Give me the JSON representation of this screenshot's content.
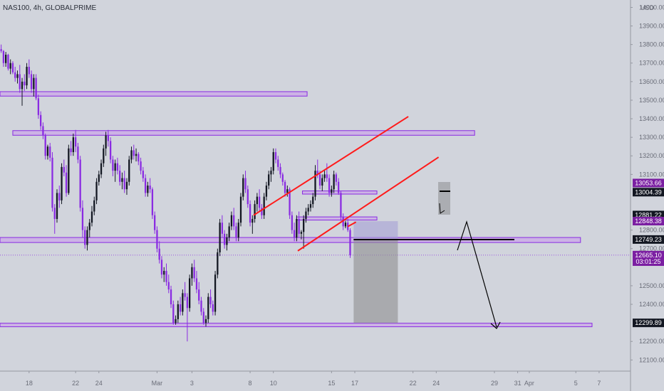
{
  "header": {
    "title": "NAS100, 4h, GLOBALPRIME"
  },
  "colors": {
    "bg": "#d1d4dc",
    "up": "#131722",
    "down": "#8a2be2",
    "zone_fill": "#c9a8e8",
    "zone_stroke": "#8a2be2",
    "channel": "#ff1a1a",
    "purple_tag": "#7b1fa2",
    "black_tag": "#131722"
  },
  "chart_data": {
    "type": "candlestick",
    "title": "NAS100, 4h, GLOBALPRIME",
    "currency": "USD",
    "y_ticks": [
      "14000.00",
      "13900.00",
      "13800.00",
      "13700.00",
      "13600.00",
      "13500.00",
      "13400.00",
      "13300.00",
      "13200.00",
      "13100.00",
      "12800.00",
      "12700.00",
      "12500.00",
      "12400.00",
      "12200.00",
      "12100.00"
    ],
    "x_ticks": [
      {
        "label": "18",
        "day": 18
      },
      {
        "label": "22",
        "day": 22
      },
      {
        "label": "24",
        "day": 24
      },
      {
        "label": "Mar",
        "day": 29
      },
      {
        "label": "3",
        "day": 32
      },
      {
        "label": "8",
        "day": 37
      },
      {
        "label": "10",
        "day": 39
      },
      {
        "label": "15",
        "day": 44
      },
      {
        "label": "17",
        "day": 46
      },
      {
        "label": "22",
        "day": 51
      },
      {
        "label": "24",
        "day": 53
      },
      {
        "label": "29",
        "day": 58
      },
      {
        "label": "31",
        "day": 60
      },
      {
        "label": "Apr",
        "day": 61
      },
      {
        "label": "5",
        "day": 65
      },
      {
        "label": "7",
        "day": 67
      }
    ],
    "y_range": [
      12040,
      14040
    ],
    "x_range": [
      15.5,
      69.7
    ],
    "price_tags": [
      {
        "label": "13053.66",
        "price": 13053.66,
        "style": "purple"
      },
      {
        "label": "13004.39",
        "price": 13004.39,
        "style": "black"
      },
      {
        "label": "12881.22",
        "price": 12881.22,
        "style": "black"
      },
      {
        "label": "12848.38",
        "price": 12848.38,
        "style": "purple"
      },
      {
        "label": "12749.23",
        "price": 12749.23,
        "style": "black"
      },
      {
        "label": "12665.10",
        "price": 12665.1,
        "style": "purple"
      },
      {
        "label": "03:01:25",
        "price": 12630,
        "style": "purple"
      },
      {
        "label": "12299.89",
        "price": 12299.89,
        "style": "black"
      }
    ],
    "zones": [
      {
        "x0": 15.5,
        "x1": 41.9,
        "y0": 13546,
        "y1": 13522
      },
      {
        "x0": 16.6,
        "x1": 56.3,
        "y0": 13336,
        "y1": 13311
      },
      {
        "x0": 41.5,
        "x1": 47.9,
        "y0": 13011,
        "y1": 12994
      },
      {
        "x0": 41.0,
        "x1": 47.9,
        "y0": 12871,
        "y1": 12854
      },
      {
        "x0": 15.5,
        "x1": 65.4,
        "y0": 12760,
        "y1": 12733
      },
      {
        "x0": 15.5,
        "x1": 72.0,
        "y0": 12298,
        "y1": 12279
      }
    ],
    "channel_lines": [
      {
        "x0": 37.3,
        "y0": 12880,
        "x1": 50.6,
        "y1": 13412
      },
      {
        "x0": 41.1,
        "y0": 12688,
        "x1": 53.2,
        "y1": 13193
      },
      {
        "x0": 45.4,
        "y0": 12819,
        "x1": 46.1,
        "y1": 12843
      }
    ],
    "position": {
      "x0": 45.9,
      "x1": 49.7,
      "entry": 12749,
      "profit_top": 12749,
      "profit_bottom": 12299,
      "risk_top": 12848,
      "risk_bottom": 12749
    },
    "candles": [
      [
        15.4,
        13760,
        13785,
        13740,
        13775
      ],
      [
        15.6,
        13775,
        13800,
        13755,
        13765
      ],
      [
        15.8,
        13765,
        13770,
        13680,
        13700
      ],
      [
        16.0,
        13700,
        13760,
        13680,
        13745
      ],
      [
        16.2,
        13745,
        13750,
        13660,
        13670
      ],
      [
        16.4,
        13670,
        13720,
        13640,
        13700
      ],
      [
        16.6,
        13700,
        13710,
        13640,
        13650
      ],
      [
        16.8,
        13650,
        13680,
        13600,
        13620
      ],
      [
        17.0,
        13620,
        13660,
        13590,
        13640
      ],
      [
        17.2,
        13640,
        13690,
        13540,
        13560
      ],
      [
        17.4,
        13560,
        13620,
        13470,
        13600
      ],
      [
        17.6,
        13600,
        13640,
        13550,
        13580
      ],
      [
        17.8,
        13580,
        13700,
        13560,
        13680
      ],
      [
        18.0,
        13680,
        13720,
        13620,
        13640
      ],
      [
        18.2,
        13640,
        13660,
        13540,
        13560
      ],
      [
        18.4,
        13560,
        13640,
        13520,
        13620
      ],
      [
        18.6,
        13620,
        13640,
        13500,
        13510
      ],
      [
        18.8,
        13510,
        13530,
        13400,
        13420
      ],
      [
        19.0,
        13420,
        13440,
        13340,
        13360
      ],
      [
        19.2,
        13360,
        13380,
        13290,
        13310
      ],
      [
        19.4,
        13310,
        13320,
        13180,
        13200
      ],
      [
        19.6,
        13200,
        13260,
        13180,
        13250
      ],
      [
        19.8,
        13250,
        13270,
        13170,
        13190
      ],
      [
        20.0,
        13190,
        13220,
        12900,
        12920
      ],
      [
        20.2,
        12920,
        12940,
        12780,
        12860
      ],
      [
        20.4,
        12860,
        13020,
        12840,
        13000
      ],
      [
        20.6,
        13000,
        13040,
        12920,
        12960
      ],
      [
        20.8,
        12960,
        13160,
        12940,
        13140
      ],
      [
        21.0,
        13140,
        13180,
        13090,
        13110
      ],
      [
        21.2,
        13110,
        13150,
        12980,
        13000
      ],
      [
        21.4,
        13000,
        13260,
        12990,
        13240
      ],
      [
        21.6,
        13240,
        13280,
        13200,
        13220
      ],
      [
        21.8,
        13220,
        13320,
        13200,
        13300
      ],
      [
        22.0,
        13300,
        13340,
        13220,
        13250
      ],
      [
        22.2,
        13250,
        13270,
        13160,
        13180
      ],
      [
        22.4,
        13180,
        13200,
        12900,
        12920
      ],
      [
        22.6,
        12920,
        12960,
        12760,
        12800
      ],
      [
        22.8,
        12800,
        12820,
        12700,
        12720
      ],
      [
        23.0,
        12720,
        12820,
        12690,
        12800
      ],
      [
        23.2,
        12800,
        12860,
        12760,
        12840
      ],
      [
        23.4,
        12840,
        12930,
        12820,
        12900
      ],
      [
        23.6,
        12900,
        12980,
        12880,
        12960
      ],
      [
        23.8,
        12960,
        13080,
        12940,
        13060
      ],
      [
        24.0,
        13060,
        13120,
        13040,
        13100
      ],
      [
        24.2,
        13100,
        13180,
        13080,
        13160
      ],
      [
        24.4,
        13160,
        13260,
        13140,
        13240
      ],
      [
        24.6,
        13240,
        13330,
        13200,
        13310
      ],
      [
        24.8,
        13310,
        13340,
        13250,
        13280
      ],
      [
        25.0,
        13280,
        13300,
        13160,
        13180
      ],
      [
        25.2,
        13180,
        13200,
        13090,
        13120
      ],
      [
        25.4,
        13120,
        13180,
        13060,
        13160
      ],
      [
        25.6,
        13160,
        13190,
        13100,
        13120
      ],
      [
        25.8,
        13120,
        13150,
        13040,
        13060
      ],
      [
        26.0,
        13060,
        13110,
        13020,
        13080
      ],
      [
        26.2,
        13080,
        13120,
        13000,
        13020
      ],
      [
        26.4,
        13020,
        13080,
        12990,
        13060
      ],
      [
        26.6,
        13060,
        13200,
        13040,
        13180
      ],
      [
        26.8,
        13180,
        13250,
        13160,
        13230
      ],
      [
        27.0,
        13230,
        13260,
        13180,
        13200
      ],
      [
        27.2,
        13200,
        13240,
        13170,
        13210
      ],
      [
        27.4,
        13210,
        13220,
        13150,
        13170
      ],
      [
        27.6,
        13170,
        13190,
        13100,
        13120
      ],
      [
        27.8,
        13120,
        13140,
        13060,
        13080
      ],
      [
        28.0,
        13080,
        13100,
        12980,
        13000
      ],
      [
        28.2,
        13000,
        13060,
        12980,
        13040
      ],
      [
        28.4,
        13040,
        13080,
        13000,
        13020
      ],
      [
        28.6,
        13020,
        13030,
        12860,
        12880
      ],
      [
        28.8,
        12880,
        12900,
        12780,
        12800
      ],
      [
        29.0,
        12800,
        12820,
        12680,
        12700
      ],
      [
        29.2,
        12700,
        12740,
        12620,
        12640
      ],
      [
        29.4,
        12640,
        12660,
        12540,
        12560
      ],
      [
        29.6,
        12560,
        12600,
        12520,
        12580
      ],
      [
        29.8,
        12580,
        12620,
        12500,
        12520
      ],
      [
        30.0,
        12520,
        12560,
        12460,
        12480
      ],
      [
        30.2,
        12480,
        12500,
        12380,
        12400
      ],
      [
        30.4,
        12400,
        12420,
        12290,
        12300
      ],
      [
        30.6,
        12300,
        12340,
        12290,
        12320
      ],
      [
        30.8,
        12320,
        12420,
        12300,
        12400
      ],
      [
        31.0,
        12400,
        12440,
        12340,
        12360
      ],
      [
        31.2,
        12360,
        12480,
        12340,
        12460
      ],
      [
        31.4,
        12460,
        12520,
        12420,
        12440
      ],
      [
        31.6,
        12440,
        12460,
        12200,
        12380
      ],
      [
        31.8,
        12380,
        12560,
        12360,
        12540
      ],
      [
        32.0,
        12540,
        12620,
        12500,
        12600
      ],
      [
        32.2,
        12600,
        12640,
        12520,
        12540
      ],
      [
        32.4,
        12540,
        12580,
        12460,
        12480
      ],
      [
        32.6,
        12480,
        12520,
        12400,
        12420
      ],
      [
        32.8,
        12420,
        12440,
        12340,
        12360
      ],
      [
        33.0,
        12360,
        12380,
        12290,
        12300
      ],
      [
        33.2,
        12300,
        12340,
        12280,
        12320
      ],
      [
        33.4,
        12320,
        12460,
        12300,
        12440
      ],
      [
        33.6,
        12440,
        12480,
        12380,
        12400
      ],
      [
        33.8,
        12400,
        12420,
        12340,
        12360
      ],
      [
        34.0,
        12360,
        12580,
        12340,
        12560
      ],
      [
        34.2,
        12560,
        12700,
        12540,
        12680
      ],
      [
        34.4,
        12680,
        12860,
        12660,
        12840
      ],
      [
        34.6,
        12840,
        12880,
        12760,
        12780
      ],
      [
        34.8,
        12780,
        12800,
        12700,
        12720
      ],
      [
        35.0,
        12720,
        12780,
        12690,
        12760
      ],
      [
        35.2,
        12760,
        12840,
        12740,
        12820
      ],
      [
        35.4,
        12820,
        12900,
        12800,
        12880
      ],
      [
        35.6,
        12880,
        12920,
        12800,
        12820
      ],
      [
        35.8,
        12820,
        12840,
        12740,
        12760
      ],
      [
        36.0,
        12760,
        12860,
        12740,
        12840
      ],
      [
        36.2,
        12840,
        13000,
        12820,
        12980
      ],
      [
        36.4,
        12980,
        13100,
        12960,
        13080
      ],
      [
        36.6,
        13080,
        13120,
        13000,
        13020
      ],
      [
        36.8,
        13020,
        13040,
        12920,
        12940
      ],
      [
        37.0,
        12940,
        12960,
        12820,
        12840
      ],
      [
        37.2,
        12840,
        12880,
        12780,
        12860
      ],
      [
        37.4,
        12860,
        12960,
        12840,
        12940
      ],
      [
        37.6,
        12940,
        13000,
        12900,
        12980
      ],
      [
        37.8,
        12980,
        13020,
        12900,
        12920
      ],
      [
        38.0,
        12920,
        12940,
        12860,
        12880
      ],
      [
        38.2,
        12880,
        13000,
        12860,
        12980
      ],
      [
        38.4,
        12980,
        13060,
        12960,
        13040
      ],
      [
        38.6,
        13040,
        13120,
        13020,
        13100
      ],
      [
        38.8,
        13100,
        13140,
        13060,
        13120
      ],
      [
        39.0,
        13120,
        13240,
        13100,
        13220
      ],
      [
        39.2,
        13220,
        13240,
        13160,
        13180
      ],
      [
        39.4,
        13180,
        13200,
        13120,
        13140
      ],
      [
        39.6,
        13140,
        13160,
        13080,
        13100
      ],
      [
        39.8,
        13100,
        13110,
        13040,
        13060
      ],
      [
        40.0,
        13060,
        13070,
        12980,
        13000
      ],
      [
        40.2,
        13000,
        13040,
        12980,
        13020
      ],
      [
        40.4,
        13020,
        13030,
        12860,
        12880
      ],
      [
        40.6,
        12880,
        12900,
        12780,
        12800
      ],
      [
        40.8,
        12800,
        12840,
        12740,
        12760
      ],
      [
        41.0,
        12760,
        12880,
        12740,
        12860
      ],
      [
        41.2,
        12860,
        12900,
        12760,
        12780
      ],
      [
        41.4,
        12780,
        12800,
        12750,
        12790
      ],
      [
        41.6,
        12790,
        12880,
        12700,
        12860
      ],
      [
        41.8,
        12860,
        12920,
        12840,
        12900
      ],
      [
        42.0,
        12900,
        12940,
        12880,
        12920
      ],
      [
        42.2,
        12920,
        12960,
        12900,
        12940
      ],
      [
        42.4,
        12940,
        13000,
        12920,
        12980
      ],
      [
        42.6,
        12980,
        13150,
        12960,
        13120
      ],
      [
        42.8,
        13120,
        13180,
        13080,
        13100
      ],
      [
        43.0,
        13100,
        13120,
        13020,
        13040
      ],
      [
        43.2,
        13040,
        13100,
        13010,
        13080
      ],
      [
        43.4,
        13080,
        13120,
        13060,
        13100
      ],
      [
        43.6,
        13100,
        13160,
        13060,
        13080
      ],
      [
        43.8,
        13080,
        13100,
        12980,
        13000
      ],
      [
        44.0,
        13000,
        13040,
        12980,
        13020
      ],
      [
        44.2,
        13020,
        13120,
        13000,
        13100
      ],
      [
        44.4,
        13100,
        13110,
        13040,
        13060
      ],
      [
        44.6,
        13060,
        13080,
        12990,
        13000
      ],
      [
        44.8,
        13000,
        13010,
        12850,
        12870
      ],
      [
        45.0,
        12870,
        12890,
        12800,
        12820
      ],
      [
        45.2,
        12820,
        12850,
        12810,
        12840
      ],
      [
        45.4,
        12840,
        12860,
        12790,
        12800
      ],
      [
        45.6,
        12800,
        12810,
        12650,
        12665
      ]
    ]
  }
}
